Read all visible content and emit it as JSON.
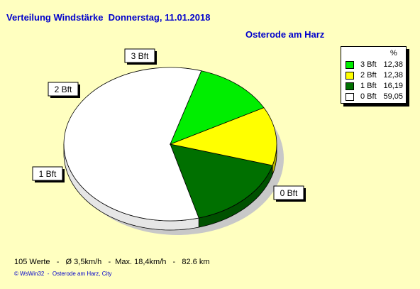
{
  "title": "Verteilung Windstärke  Donnerstag, 11.01.2018",
  "subtitle": "Osterode am Harz",
  "legend": {
    "header": "%",
    "items": [
      {
        "label": "3 Bft",
        "value": "12,38",
        "color": "#00ee00"
      },
      {
        "label": "2 Bft",
        "value": "12,38",
        "color": "#ffff00"
      },
      {
        "label": "1 Bft",
        "value": "16,19",
        "color": "#007000"
      },
      {
        "label": "0 Bft",
        "value": "59,05",
        "color": "#ffffff"
      }
    ]
  },
  "footer": "105 Werte   -   Ø 3,5km/h   -  Max. 18,4km/h   -   82.6 km",
  "copyright": "© WsWin32  -  Osterode am Harz, City",
  "chart_data": {
    "type": "pie",
    "title": "Verteilung Windstärke  Donnerstag, 11.01.2018",
    "subtitle": "Osterode am Harz",
    "slices": [
      {
        "label": "0 Bft",
        "value": 59.05,
        "color": "#ffffff"
      },
      {
        "label": "1 Bft",
        "value": 16.19,
        "color": "#007000"
      },
      {
        "label": "2 Bft",
        "value": 12.38,
        "color": "#ffff00"
      },
      {
        "label": "3 Bft",
        "value": 12.38,
        "color": "#00ee00"
      }
    ],
    "legend": "top-right"
  }
}
